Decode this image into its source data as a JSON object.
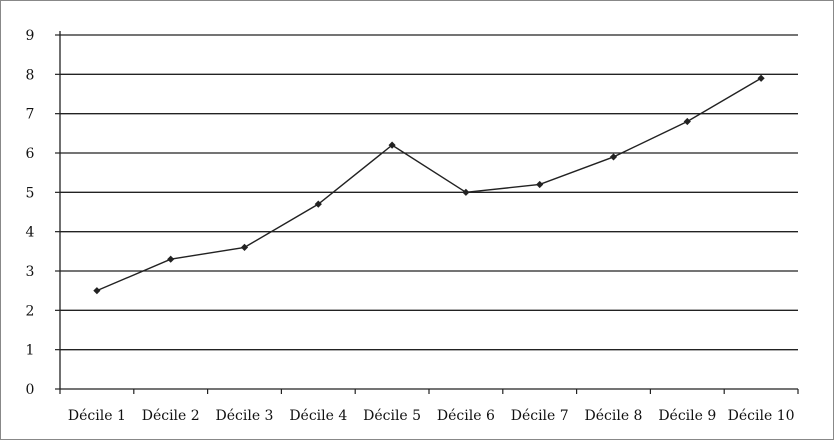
{
  "chart_data": {
    "type": "line",
    "title": "",
    "xlabel": "",
    "ylabel": "",
    "categories": [
      "Décile 1",
      "Décile 2",
      "Décile 3",
      "Décile 4",
      "Décile 5",
      "Décile 6",
      "Décile 7",
      "Décile 8",
      "Décile 9",
      "Décile 10"
    ],
    "series": [
      {
        "values": [
          2.5,
          3.3,
          3.6,
          4.7,
          6.2,
          5.0,
          5.2,
          5.9,
          6.8,
          7.9
        ],
        "color": "#222222",
        "marker": "diamond"
      }
    ],
    "ylim": [
      0,
      9
    ],
    "yticks": [
      "0",
      "1",
      "2",
      "3",
      "4",
      "5",
      "6",
      "7",
      "8",
      "9"
    ],
    "grid": true,
    "legend": "none",
    "colors": {
      "gridline": "#222222",
      "frame": "#888888",
      "line": "#222222"
    }
  }
}
